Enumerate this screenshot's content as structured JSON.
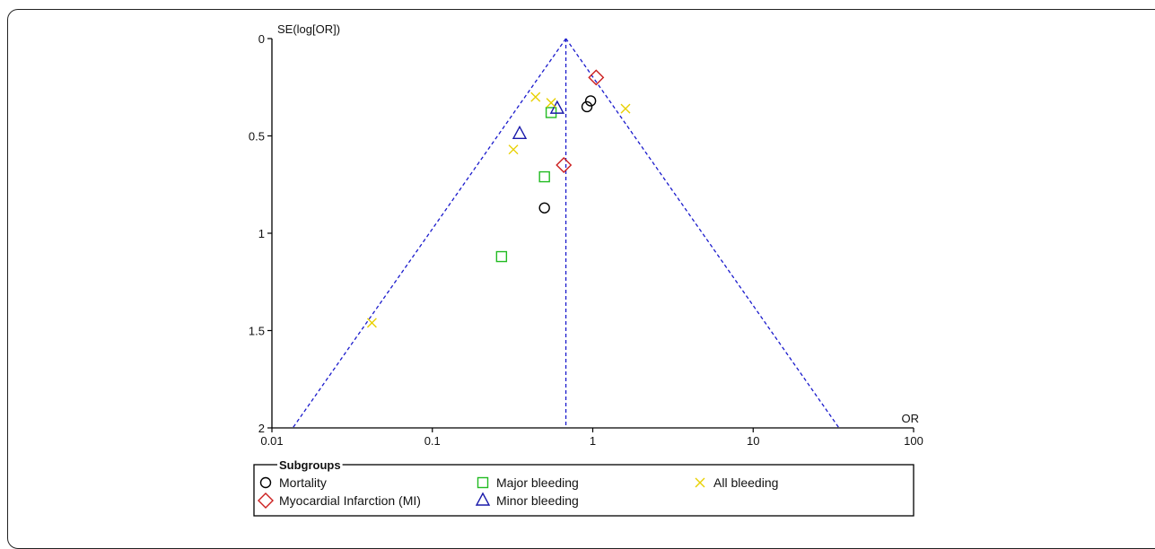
{
  "chart_data": {
    "type": "scatter",
    "subtype": "funnel-plot",
    "xlabel": "OR",
    "ylabel": "SE(log[OR])",
    "x_scale": "log",
    "xlim": [
      0.01,
      100
    ],
    "ylim": [
      0,
      2
    ],
    "y_reversed": true,
    "x_ticks": [
      "0.01",
      "0.1",
      "1",
      "10",
      "100"
    ],
    "y_ticks": [
      "0",
      "0.5",
      "1",
      "1.5",
      "2"
    ],
    "pooled_or": 0.68,
    "funnel_color": "#1a1acc",
    "legend": {
      "title": "Subgroups",
      "placement": "bottom"
    },
    "series": [
      {
        "name": "Mortality",
        "marker": "circle",
        "color": "#000000",
        "points": [
          {
            "x": 0.97,
            "y": 0.32
          },
          {
            "x": 0.92,
            "y": 0.35
          },
          {
            "x": 0.5,
            "y": 0.87
          }
        ]
      },
      {
        "name": "Myocardial Infarction (MI)",
        "marker": "diamond",
        "color": "#cc1f1f",
        "points": [
          {
            "x": 1.05,
            "y": 0.2
          },
          {
            "x": 0.66,
            "y": 0.65
          }
        ]
      },
      {
        "name": "Major bleeding",
        "marker": "square",
        "color": "#22bb22",
        "points": [
          {
            "x": 0.55,
            "y": 0.38
          },
          {
            "x": 0.5,
            "y": 0.71
          },
          {
            "x": 0.27,
            "y": 1.12
          }
        ]
      },
      {
        "name": "Minor bleeding",
        "marker": "triangle",
        "color": "#1a1aaa",
        "points": [
          {
            "x": 0.6,
            "y": 0.36
          },
          {
            "x": 0.35,
            "y": 0.49
          }
        ]
      },
      {
        "name": "All bleeding",
        "marker": "x",
        "color": "#e8d000",
        "points": [
          {
            "x": 0.44,
            "y": 0.3
          },
          {
            "x": 0.55,
            "y": 0.33
          },
          {
            "x": 1.6,
            "y": 0.36
          },
          {
            "x": 0.32,
            "y": 0.57
          },
          {
            "x": 0.042,
            "y": 1.46
          }
        ]
      }
    ]
  }
}
